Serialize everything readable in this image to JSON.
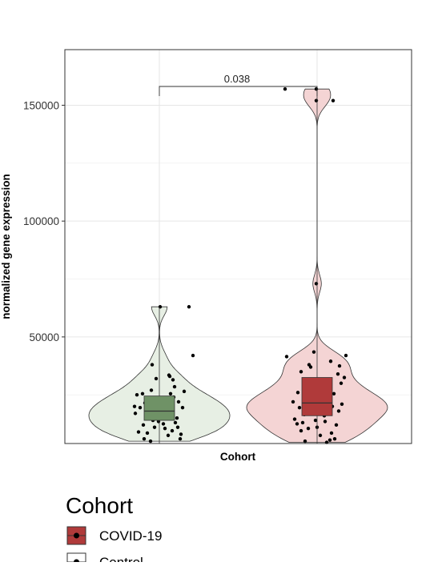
{
  "chart_data": {
    "type": "violin",
    "title": "",
    "xlabel": "Cohort",
    "ylabel": "normalized gene expression",
    "ylim": [
      4000,
      174000
    ],
    "y_ticks": [
      50000,
      100000,
      150000
    ],
    "y_tick_labels": [
      "50000",
      "100000",
      "150000"
    ],
    "grid": true,
    "legend": {
      "title": "Cohort",
      "position": "bottom",
      "entries": [
        {
          "label": "COVID-19",
          "fill": "#b03a3a"
        },
        {
          "label": "Control",
          "fill": "#ffffff"
        }
      ]
    },
    "annotation": {
      "type": "significance-bracket",
      "text": "0.038",
      "between": [
        "Control",
        "COVID-19"
      ]
    },
    "series": [
      {
        "group": "Control",
        "violin_fill": "#e7efe4",
        "box_fill": "#6f9266",
        "box": {
          "whisker_low": 4000,
          "q1": 14000,
          "median": 18000,
          "q3": 24500,
          "whisker_high": 63000
        },
        "points": [
          [
            -0.28,
            25000
          ],
          [
            -0.31,
            20000
          ],
          [
            -0.24,
            19500
          ],
          [
            -0.3,
            17000
          ],
          [
            -0.18,
            21500
          ],
          [
            -0.2,
            12000
          ],
          [
            -0.26,
            9000
          ],
          [
            -0.14,
            15000
          ],
          [
            -0.1,
            27000
          ],
          [
            -0.12,
            20000
          ],
          [
            -0.06,
            11000
          ],
          [
            -0.08,
            14000
          ],
          [
            -0.04,
            32000
          ],
          [
            -0.15,
            8500
          ],
          [
            -0.03,
            23000
          ],
          [
            -0.01,
            13500
          ],
          [
            -0.09,
            38000
          ],
          [
            0.02,
            16000
          ],
          [
            0.04,
            19500
          ],
          [
            0.05,
            12500
          ],
          [
            -0.11,
            5000
          ],
          [
            0.01,
            63000
          ],
          [
            0.07,
            10500
          ],
          [
            0.09,
            21000
          ],
          [
            0.1,
            15500
          ],
          [
            0.12,
            33500
          ],
          [
            0.11,
            7500
          ],
          [
            0.14,
            25500
          ],
          [
            0.15,
            17500
          ],
          [
            0.16,
            9500
          ],
          [
            0.19,
            28500
          ],
          [
            0.2,
            13000
          ],
          [
            0.17,
            31500
          ],
          [
            0.22,
            15000
          ],
          [
            0.24,
            22000
          ],
          [
            0.23,
            11000
          ],
          [
            0.26,
            6000
          ],
          [
            0.29,
            19500
          ],
          [
            0.31,
            26500
          ],
          [
            0.27,
            8000
          ],
          [
            0.37,
            63000
          ],
          [
            0.42,
            42000
          ],
          [
            -0.19,
            6000
          ],
          [
            0.06,
            16500
          ],
          [
            -0.21,
            25500
          ],
          [
            0.13,
            33000
          ],
          [
            -0.13,
            17500
          ],
          [
            0.18,
            24000
          ]
        ]
      },
      {
        "group": "COVID-19",
        "violin_fill": "#f4d4d4",
        "box_fill": "#b03a3a",
        "box": {
          "whisker_low": 4000,
          "q1": 16000,
          "median": 21500,
          "q3": 32500,
          "whisker_high": 157000
        },
        "points": [
          [
            -0.4,
            157000
          ],
          [
            0.2,
            152000
          ],
          [
            -0.01,
            157000
          ],
          [
            -0.01,
            152000
          ],
          [
            -0.01,
            73000
          ],
          [
            -0.38,
            41500
          ],
          [
            0.36,
            42000
          ],
          [
            -0.2,
            35000
          ],
          [
            -0.3,
            22000
          ],
          [
            0.34,
            32500
          ],
          [
            -0.24,
            26000
          ],
          [
            -0.1,
            38000
          ],
          [
            -0.04,
            43500
          ],
          [
            0.05,
            27500
          ],
          [
            0.15,
            29000
          ],
          [
            0.19,
            20000
          ],
          [
            0.21,
            25500
          ],
          [
            0.26,
            34000
          ],
          [
            0.28,
            37500
          ],
          [
            0.3,
            30000
          ],
          [
            0.31,
            21000
          ],
          [
            0.24,
            12000
          ],
          [
            0.22,
            6000
          ],
          [
            0.18,
            8500
          ],
          [
            0.14,
            18000
          ],
          [
            0.1,
            13500
          ],
          [
            0.08,
            21500
          ],
          [
            0.06,
            17500
          ],
          [
            0.03,
            24500
          ],
          [
            0.01,
            19000
          ],
          [
            -0.02,
            14000
          ],
          [
            -0.05,
            26000
          ],
          [
            -0.07,
            22000
          ],
          [
            -0.09,
            18500
          ],
          [
            -0.12,
            24000
          ],
          [
            -0.14,
            28500
          ],
          [
            -0.16,
            16500
          ],
          [
            -0.18,
            13000
          ],
          [
            -0.2,
            9500
          ],
          [
            -0.22,
            19500
          ],
          [
            -0.25,
            12500
          ],
          [
            -0.28,
            14500
          ],
          [
            -0.15,
            5000
          ],
          [
            0.12,
            4500
          ],
          [
            0.0,
            11000
          ],
          [
            0.04,
            7500
          ],
          [
            -0.06,
            31500
          ],
          [
            0.11,
            23500
          ],
          [
            -0.11,
            10500
          ],
          [
            0.17,
            39500
          ],
          [
            0.09,
            16000
          ],
          [
            -0.03,
            20500
          ],
          [
            0.27,
            18000
          ],
          [
            -0.08,
            37000
          ],
          [
            0.16,
            5500
          ]
        ]
      }
    ]
  }
}
